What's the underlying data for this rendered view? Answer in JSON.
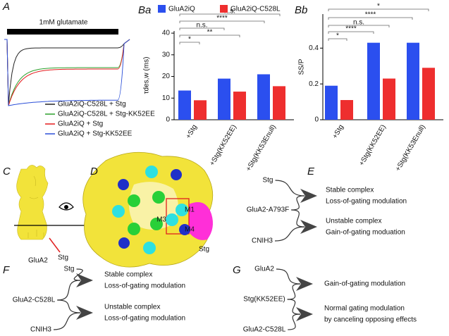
{
  "panel_a": {
    "label": "A",
    "stimulus": "1mM glutamate",
    "legend": [
      {
        "name": "GluA2iQ-C528L + Stg",
        "color": "#222222"
      },
      {
        "name": "GluA2iQ-C528L + Stg-KK52EE",
        "color": "#2ca02c"
      },
      {
        "name": "GluA2iQ + Stg",
        "color": "#e41a1c"
      },
      {
        "name": "GluA2iQ + Stg-KK52EE",
        "color": "#2b4fd8"
      }
    ]
  },
  "chart_data": [
    {
      "type": "bar",
      "label": "Ba",
      "y_label": "τdes,w (ms)",
      "categories": [
        "+Stg",
        "+Stg(KK52EE)",
        "+Stg(KK53Enull)"
      ],
      "series": [
        {
          "name": "GluA2iQ",
          "color": "#2b4fef",
          "values": [
            13.5,
            19,
            21
          ]
        },
        {
          "name": "GluA2iQ-C528L",
          "color": "#ee2e2e",
          "values": [
            9,
            13,
            15.5
          ]
        }
      ],
      "ylim": [
        0,
        41
      ],
      "yticks": [
        0,
        10,
        20,
        30,
        40
      ],
      "comparisons": [
        "*",
        "**",
        "n.s.",
        "****",
        "n.s."
      ]
    },
    {
      "type": "bar",
      "label": "Bb",
      "y_label": "SS/P",
      "categories": [
        "+Stg",
        "+Stg(KK52EE)",
        "+Stg(KK53Enull)"
      ],
      "series": [
        {
          "name": "GluA2iQ",
          "color": "#2b4fef",
          "values": [
            0.19,
            0.43,
            0.43
          ]
        },
        {
          "name": "GluA2iQ-C528L",
          "color": "#ee2e2e",
          "values": [
            0.11,
            0.23,
            0.29
          ]
        }
      ],
      "ylim": [
        0,
        0.59
      ],
      "yticks": [
        0,
        0.2,
        0.4
      ],
      "comparisons": [
        "*",
        "****",
        "n.s.",
        "****",
        "*"
      ]
    }
  ],
  "panel_c": {
    "label": "C",
    "protein": "GluA2",
    "auxiliary": "Stg"
  },
  "panel_d": {
    "label": "D",
    "helices": [
      "M1",
      "M3",
      "M4"
    ],
    "auxiliary": "Stg"
  },
  "panel_e": {
    "label": "E",
    "inputs": [
      "Stg",
      "GluA2-A793F",
      "CNIH3"
    ],
    "outcomes": [
      [
        "Stable complex",
        "Loss-of-gating modulation"
      ],
      [
        "Unstable complex",
        "Gain-of-gating moduation"
      ]
    ]
  },
  "panel_f": {
    "label": "F",
    "inputs": [
      "Stg",
      "GluA2-C528L",
      "CNIH3"
    ],
    "outcomes": [
      [
        "Stable complex",
        "Loss-of-gating modulation"
      ],
      [
        "Unstable complex",
        "Loss-of-gating modulation"
      ]
    ]
  },
  "panel_g": {
    "label": "G",
    "inputs": [
      "GluA2",
      "Stg(KK52EE)",
      "GluA2-C528L"
    ],
    "outcomes": [
      [
        "Gain-of-gating modulation"
      ],
      [
        "Normal gating modulation",
        "by canceling opposing effects"
      ]
    ]
  }
}
